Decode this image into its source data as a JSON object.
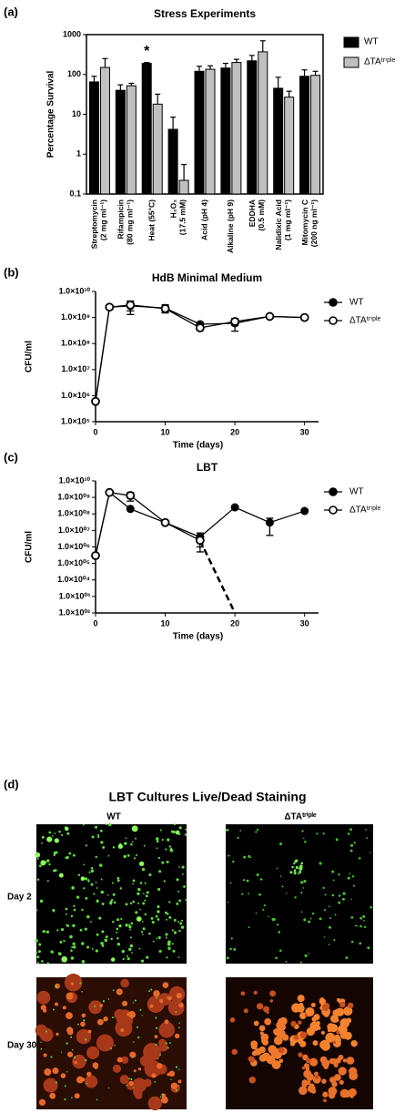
{
  "chart_data": [
    {
      "type": "bar",
      "panel_label": "(a)",
      "title": "Stress Experiments",
      "y_label": "Percentage Survival",
      "categories": [
        [
          "Streptomycin",
          "(2 mg ml⁻¹)"
        ],
        [
          "Rifampicin",
          "(80 mg ml⁻¹)"
        ],
        [
          "Heat (55°C)"
        ],
        [
          "H₂O₂",
          "(17.5 mM)"
        ],
        [
          "Acid (pH 4)"
        ],
        [
          "Alkaline (pH 9)"
        ],
        [
          "EDDHA",
          "(0.5 mM)"
        ],
        [
          "Nalidixic Acid",
          "(1 mg ml⁻¹)"
        ],
        [
          "Mitomycin C",
          "(200 ng ml⁻¹)"
        ]
      ],
      "series": [
        {
          "name": "WT",
          "color": "#000000",
          "values": [
            65,
            40,
            190,
            4.2,
            120,
            145,
            220,
            45,
            90
          ],
          "errors": [
            25,
            15,
            10,
            4.3,
            40,
            45,
            80,
            40,
            40
          ]
        },
        {
          "name": "ΔTAᵗʳⁱᵖˡᵉ",
          "color": "#c0c0c0",
          "values": [
            150,
            52,
            18,
            0.22,
            135,
            200,
            370,
            27,
            95
          ],
          "errors": [
            100,
            8,
            14,
            0.33,
            30,
            40,
            330,
            11,
            25
          ]
        }
      ],
      "annotations": [
        {
          "text": "*",
          "series": "WT",
          "category": [
            "Heat (55°C)"
          ]
        }
      ],
      "ylim": [
        0.1,
        1000
      ],
      "yticks": [
        0.1,
        1,
        10,
        100,
        1000
      ],
      "log_y": true,
      "legend": "right"
    },
    {
      "type": "line",
      "panel_label": "(b)",
      "title": "HdB Minimal Medium",
      "x_label": "Time (days)",
      "y_label": "CFU/ml",
      "x": [
        0,
        2,
        5,
        10,
        15,
        20,
        25,
        30
      ],
      "series": [
        {
          "name": "WT",
          "color": "#000000",
          "marker": "filled",
          "values": [
            600000,
            2500000000,
            2800000000,
            2300000000,
            550000000,
            600000000,
            1100000000,
            1000000000
          ],
          "errors": [
            0,
            300000000,
            1500000000,
            800000000,
            100000000,
            300000000,
            100000000,
            50000000
          ]
        },
        {
          "name": "ΔTAᵗʳⁱᵖˡᵉ",
          "color": "#000000",
          "marker": "open",
          "values": [
            600000,
            2500000000,
            3000000000,
            2200000000,
            400000000,
            700000000,
            1100000000,
            1000000000
          ],
          "errors": [
            0,
            300000000,
            1200000000,
            600000000,
            80000000,
            200000000,
            100000000,
            50000000
          ]
        }
      ],
      "xlim": [
        0,
        32
      ],
      "xticks": [
        0,
        10,
        20,
        30
      ],
      "ylim": [
        100000,
        10000000000
      ],
      "log_y": true,
      "legend": "right",
      "yticks": [
        {
          "value": 100000,
          "label": "1.0×10⁵"
        },
        {
          "value": 1000000,
          "label": "1.0×10⁶"
        },
        {
          "value": 10000000,
          "label": "1.0×10⁷"
        },
        {
          "value": 100000000,
          "label": "1.0×10⁸"
        },
        {
          "value": 1000000000,
          "label": "1.0×10⁹"
        },
        {
          "value": 10000000000,
          "label": "1.0×10¹⁰"
        }
      ]
    },
    {
      "type": "line",
      "panel_label": "(c)",
      "title": "LBT",
      "x_label": "Time (days)",
      "y_label": "CFU/ml",
      "x": [
        0,
        2,
        5,
        10,
        15,
        20,
        25,
        30
      ],
      "series": [
        {
          "name": "WT",
          "color": "#000000",
          "marker": "filled",
          "values": [
            300000,
            2000000000,
            200000000,
            30000000,
            4000000,
            250000000,
            30000000,
            150000000
          ],
          "errors": [
            0,
            200000000,
            30000000,
            3000000,
            3000000,
            20000000,
            25000000,
            10000000
          ]
        },
        {
          "name": "ΔTAᵗʳⁱᵖˡᵉ",
          "color": "#000000",
          "marker": "open",
          "dashed_from": 15,
          "values": [
            300000,
            2000000000,
            1300000000,
            30000000,
            2500000,
            100,
            null,
            null
          ],
          "errors": [
            0,
            200000000,
            700000000,
            3000000,
            2000000,
            0,
            null,
            null
          ]
        }
      ],
      "xlim": [
        0,
        32
      ],
      "xticks": [
        0,
        10,
        20,
        30
      ],
      "ylim": [
        100,
        10000000000
      ],
      "log_y": true,
      "legend": "right",
      "yticks": [
        {
          "value": 100,
          "label": "1.0×10⁰²"
        },
        {
          "value": 1000,
          "label": "1.0×10⁰³"
        },
        {
          "value": 10000,
          "label": "1.0×10⁰⁴"
        },
        {
          "value": 100000,
          "label": "1.0×10⁰⁵"
        },
        {
          "value": 1000000,
          "label": "1.0×10⁰⁶"
        },
        {
          "value": 10000000,
          "label": "1.0×10⁰⁷"
        },
        {
          "value": 100000000,
          "label": "1.0×10⁰⁸"
        },
        {
          "value": 1000000000,
          "label": "1.0×10⁰⁹"
        },
        {
          "value": 10000000000,
          "label": "1.0×10¹⁰"
        }
      ]
    }
  ],
  "image_panel": {
    "panel_label": "(d)",
    "title": "LBT Cultures Live/Dead Staining",
    "columns": [
      "WT",
      "ΔTAᵗʳⁱᵖˡᵉ"
    ],
    "rows": [
      "Day 2",
      "Day 30"
    ]
  }
}
